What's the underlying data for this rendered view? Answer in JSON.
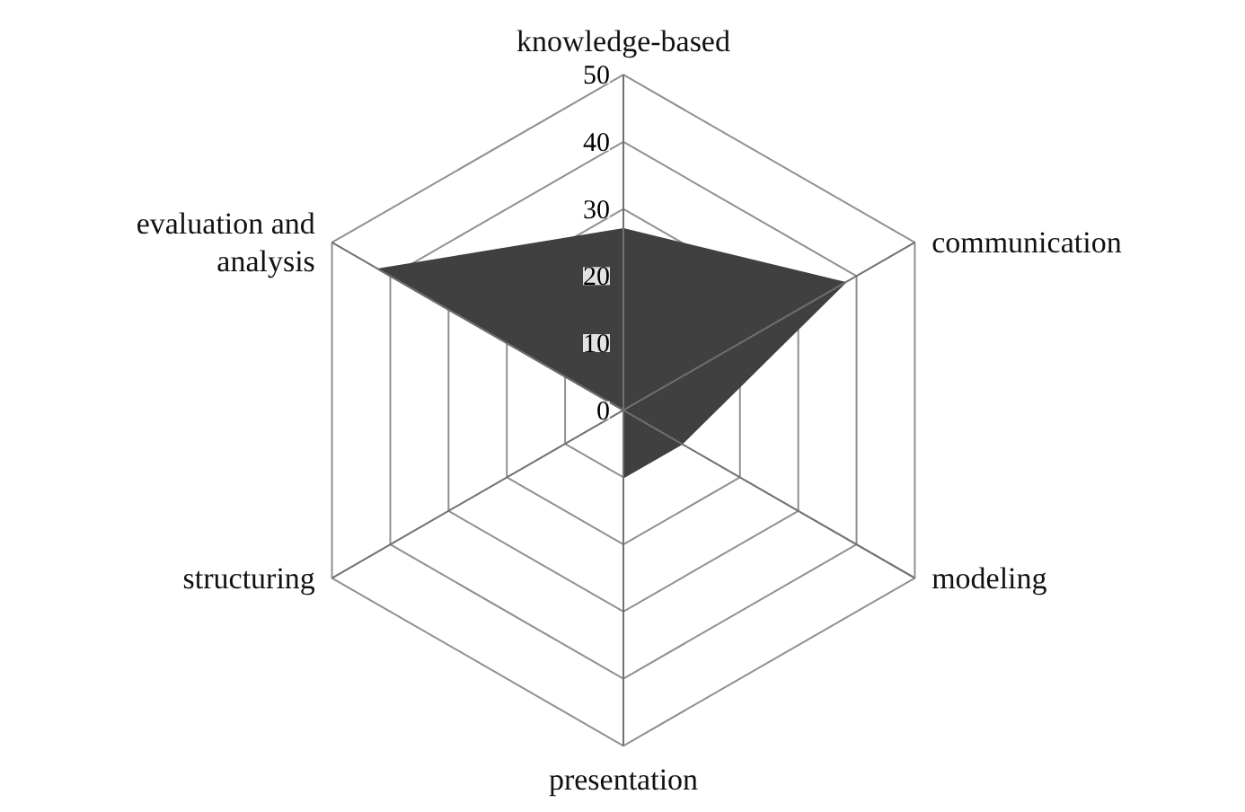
{
  "chart_data": {
    "type": "radar",
    "categories": [
      "knowledge-based",
      "communication",
      "modeling",
      "presentation",
      "structuring",
      "evaluation and\nanalysis"
    ],
    "series": [
      {
        "color": "#404040",
        "values": [
          27,
          38,
          10,
          10,
          0,
          42
        ]
      }
    ],
    "ylim": [
      0,
      50
    ],
    "yticks": [
      0,
      10,
      20,
      30,
      40,
      50
    ],
    "grid": true
  }
}
